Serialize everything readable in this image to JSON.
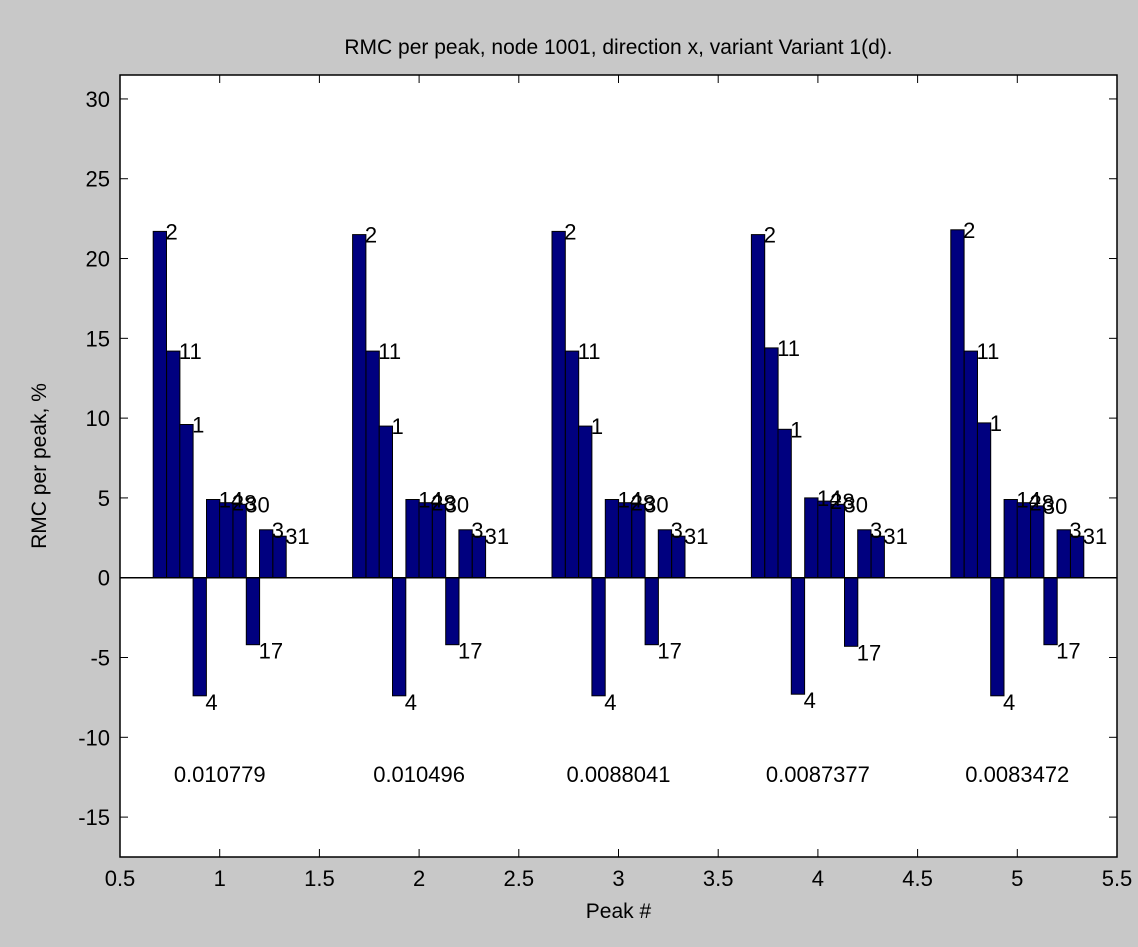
{
  "chart_data": {
    "type": "bar",
    "title": "RMC per peak, node 1001, direction x, variant Variant 1(d).",
    "xlabel": "Peak #",
    "ylabel": "RMC per peak, %",
    "xlim": [
      0.5,
      5.5
    ],
    "ylim": [
      -17.5,
      31.5
    ],
    "xticks": [
      "0.5",
      "1",
      "1.5",
      "2",
      "2.5",
      "3",
      "3.5",
      "4",
      "4.5",
      "5",
      "5.5"
    ],
    "xtick_values": [
      0.5,
      1,
      1.5,
      2,
      2.5,
      3,
      3.5,
      4,
      4.5,
      5,
      5.5
    ],
    "yticks": [
      "30",
      "25",
      "20",
      "15",
      "10",
      "5",
      "0",
      "-5",
      "-10",
      "-15"
    ],
    "ytick_values": [
      30,
      25,
      20,
      15,
      10,
      5,
      0,
      -5,
      -10,
      -15
    ],
    "bar_color": "#00007f",
    "grid": false,
    "bar_offsets": [
      -0.3,
      -0.233,
      -0.167,
      -0.1,
      -0.033,
      0.033,
      0.1,
      0.167,
      0.233,
      0.3
    ],
    "peaks": [
      {
        "peak": 1,
        "summary": "0.010779",
        "bars": [
          {
            "label": "2",
            "value": 21.7
          },
          {
            "label": "11",
            "value": 14.2
          },
          {
            "label": "1",
            "value": 9.6
          },
          {
            "label": "4",
            "value": -7.4
          },
          {
            "label": "14",
            "value": 4.9
          },
          {
            "label": "28",
            "value": 4.7
          },
          {
            "label": "30",
            "value": 4.6
          },
          {
            "label": "17",
            "value": -4.2
          },
          {
            "label": "3",
            "value": 3.0
          },
          {
            "label": "31",
            "value": 2.6
          }
        ]
      },
      {
        "peak": 2,
        "summary": "0.010496",
        "bars": [
          {
            "label": "2",
            "value": 21.5
          },
          {
            "label": "11",
            "value": 14.2
          },
          {
            "label": "1",
            "value": 9.5
          },
          {
            "label": "4",
            "value": -7.4
          },
          {
            "label": "14",
            "value": 4.9
          },
          {
            "label": "28",
            "value": 4.7
          },
          {
            "label": "30",
            "value": 4.6
          },
          {
            "label": "17",
            "value": -4.2
          },
          {
            "label": "3",
            "value": 3.0
          },
          {
            "label": "31",
            "value": 2.6
          }
        ]
      },
      {
        "peak": 3,
        "summary": "0.0088041",
        "bars": [
          {
            "label": "2",
            "value": 21.7
          },
          {
            "label": "11",
            "value": 14.2
          },
          {
            "label": "1",
            "value": 9.5
          },
          {
            "label": "4",
            "value": -7.4
          },
          {
            "label": "14",
            "value": 4.9
          },
          {
            "label": "28",
            "value": 4.7
          },
          {
            "label": "30",
            "value": 4.6
          },
          {
            "label": "17",
            "value": -4.2
          },
          {
            "label": "3",
            "value": 3.0
          },
          {
            "label": "31",
            "value": 2.6
          }
        ]
      },
      {
        "peak": 4,
        "summary": "0.0087377",
        "bars": [
          {
            "label": "2",
            "value": 21.5
          },
          {
            "label": "11",
            "value": 14.4
          },
          {
            "label": "1",
            "value": 9.3
          },
          {
            "label": "4",
            "value": -7.3
          },
          {
            "label": "14",
            "value": 5.0
          },
          {
            "label": "28",
            "value": 4.8
          },
          {
            "label": "30",
            "value": 4.6
          },
          {
            "label": "17",
            "value": -4.3
          },
          {
            "label": "3",
            "value": 3.0
          },
          {
            "label": "31",
            "value": 2.6
          }
        ]
      },
      {
        "peak": 5,
        "summary": "0.0083472",
        "bars": [
          {
            "label": "2",
            "value": 21.8
          },
          {
            "label": "11",
            "value": 14.2
          },
          {
            "label": "1",
            "value": 9.7
          },
          {
            "label": "4",
            "value": -7.4
          },
          {
            "label": "14",
            "value": 4.9
          },
          {
            "label": "28",
            "value": 4.7
          },
          {
            "label": "30",
            "value": 4.5
          },
          {
            "label": "17",
            "value": -4.2
          },
          {
            "label": "3",
            "value": 3.0
          },
          {
            "label": "31",
            "value": 2.6
          }
        ]
      }
    ]
  }
}
